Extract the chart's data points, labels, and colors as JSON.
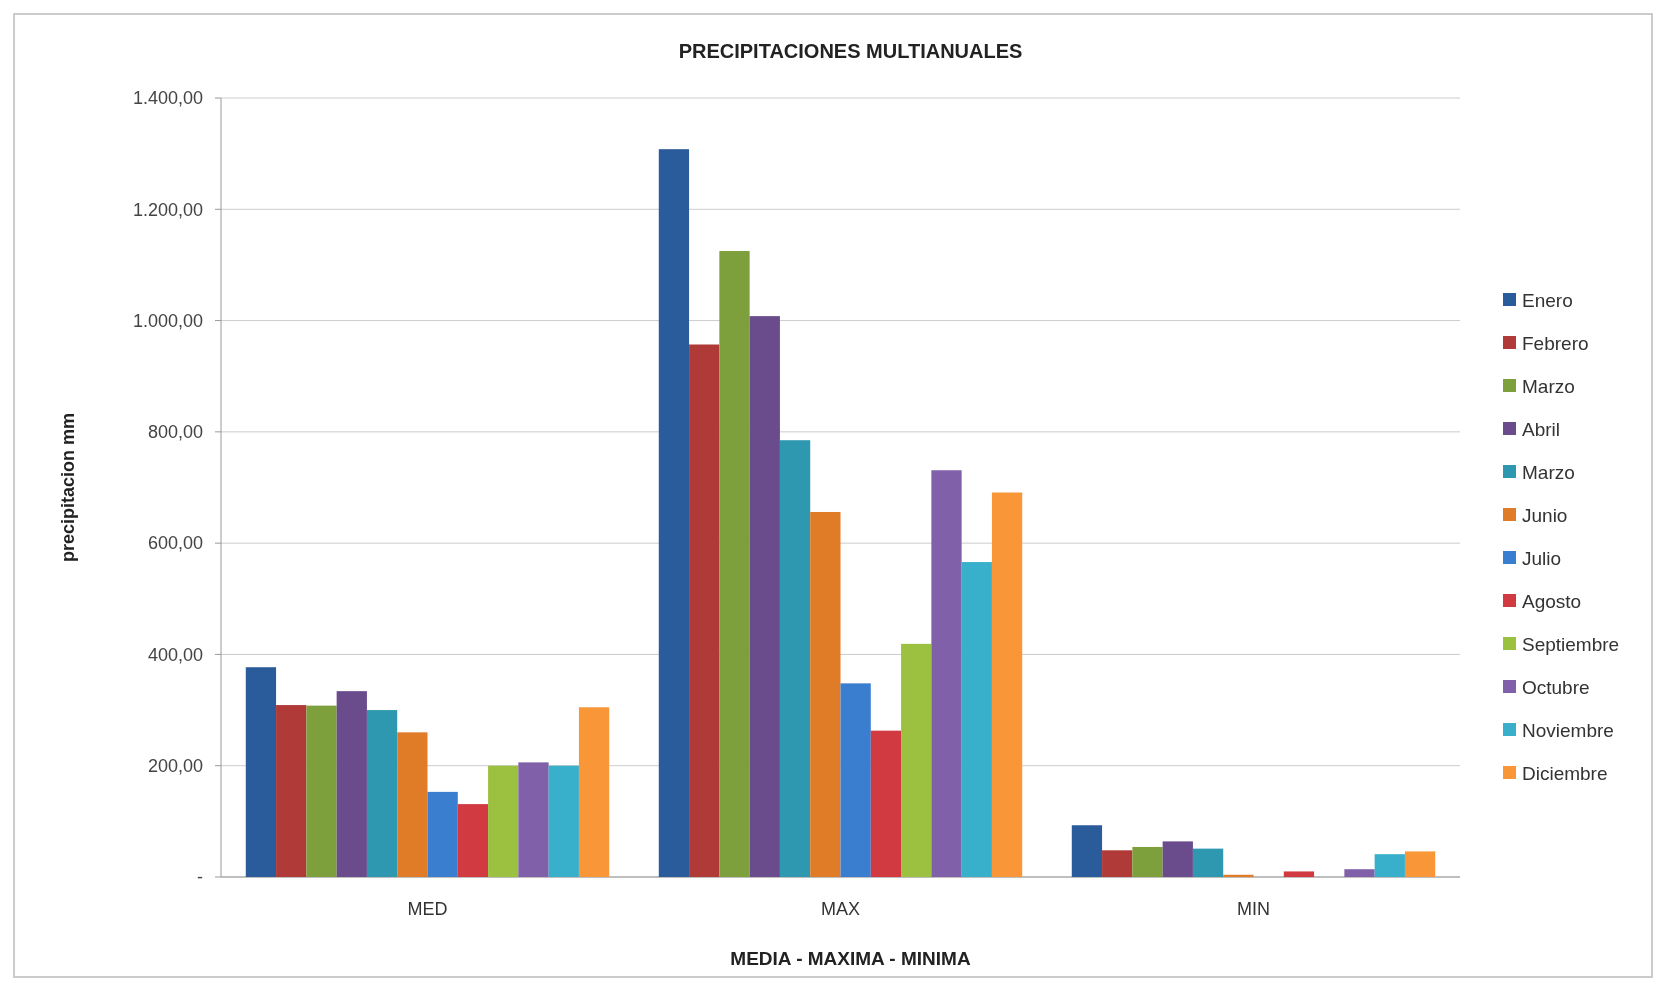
{
  "chart_data": {
    "type": "bar",
    "title": "PRECIPITACIONES  MULTIANUALES",
    "xlabel": "MEDIA - MAXIMA - MINIMA",
    "ylabel": "precipitacion mm",
    "categories": [
      "MED",
      "MAX",
      "MIN"
    ],
    "series": [
      {
        "name": "Enero",
        "color": "#2a5b9b",
        "values": [
          377,
          1308,
          93
        ]
      },
      {
        "name": "Febrero",
        "color": "#b03a37",
        "values": [
          309,
          957,
          48
        ]
      },
      {
        "name": "Marzo",
        "color": "#7ea03c",
        "values": [
          308,
          1125,
          54
        ]
      },
      {
        "name": "Abril",
        "color": "#6a4c8c",
        "values": [
          334,
          1008,
          64
        ]
      },
      {
        "name": "Marzo",
        "color": "#2e98b0",
        "values": [
          300,
          785,
          51
        ]
      },
      {
        "name": "Junio",
        "color": "#e07b28",
        "values": [
          260,
          656,
          4
        ]
      },
      {
        "name": "Julio",
        "color": "#3a7ed0",
        "values": [
          153,
          348,
          0
        ]
      },
      {
        "name": "Agosto",
        "color": "#d03a40",
        "values": [
          131,
          263,
          10
        ]
      },
      {
        "name": "Septiembre",
        "color": "#9cc040",
        "values": [
          200,
          419,
          0
        ]
      },
      {
        "name": "Octubre",
        "color": "#8060a8",
        "values": [
          206,
          731,
          14
        ]
      },
      {
        "name": "Noviembre",
        "color": "#38b0cc",
        "values": [
          200,
          566,
          41
        ]
      },
      {
        "name": "Diciembre",
        "color": "#f89638",
        "values": [
          305,
          691,
          46
        ]
      }
    ],
    "ylim": [
      0,
      1400
    ],
    "yticks": [
      {
        "value": 0,
        "label": "-"
      },
      {
        "value": 200,
        "label": "200,00"
      },
      {
        "value": 400,
        "label": "400,00"
      },
      {
        "value": 600,
        "label": "600,00"
      },
      {
        "value": 800,
        "label": "800,00"
      },
      {
        "value": 1000,
        "label": "1.000,00"
      },
      {
        "value": 1200,
        "label": "1.200,00"
      },
      {
        "value": 1400,
        "label": "1.400,00"
      }
    ],
    "grid": "y",
    "legend": "right"
  }
}
